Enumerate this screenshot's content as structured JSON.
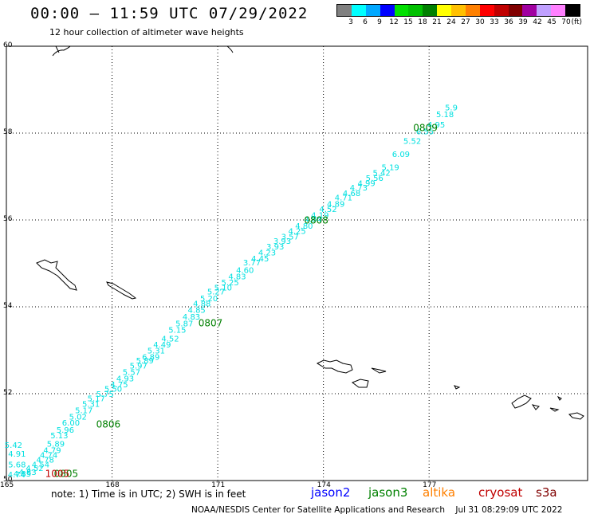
{
  "header": {
    "title": "00:00 – 11:59 UTC 07/29/2022",
    "subtitle": "12 hour collection of altimeter wave heights"
  },
  "legend": {
    "colors": [
      "#808080",
      "#00ffff",
      "#00a8ff",
      "#0000ff",
      "#00e000",
      "#00c000",
      "#008000",
      "#ffff00",
      "#ffc000",
      "#ff8000",
      "#ff0000",
      "#c00000",
      "#800000",
      "#a000a0",
      "#c0a0ff",
      "#ff80ff",
      "#000000"
    ],
    "labels": [
      "3",
      "6",
      "9",
      "12",
      "15",
      "18",
      "21",
      "24",
      "27",
      "30",
      "33",
      "36",
      "39",
      "42",
      "45",
      "70"
    ],
    "unit": "(ft)"
  },
  "axes": {
    "lat_labels": [
      "60",
      "58",
      "56",
      "54",
      "52",
      "50"
    ],
    "lon_labels": [
      "165",
      "168",
      "171",
      "174",
      "177"
    ]
  },
  "track": {
    "color": "#00e0e0",
    "time_color": "#008000",
    "points": [
      {
        "lon": 165.04,
        "lat": 50.07,
        "v": "4.74"
      },
      {
        "lon": 165.2,
        "lat": 50.09,
        "v": "4.85"
      },
      {
        "lon": 165.35,
        "lat": 50.13,
        "v": "4.83"
      },
      {
        "lon": 165.55,
        "lat": 50.22,
        "v": "4.52"
      },
      {
        "lon": 165.72,
        "lat": 50.3,
        "v": "4.54"
      },
      {
        "lon": 165.85,
        "lat": 50.41,
        "v": "4.78"
      },
      {
        "lon": 165.95,
        "lat": 50.52,
        "v": "4.74"
      },
      {
        "lon": 166.05,
        "lat": 50.63,
        "v": "4.79"
      },
      {
        "lon": 166.15,
        "lat": 50.78,
        "v": "5.89"
      },
      {
        "lon": 166.25,
        "lat": 50.97,
        "v": "5.13"
      },
      {
        "lon": 166.42,
        "lat": 51.1,
        "v": "5.96"
      },
      {
        "lon": 166.58,
        "lat": 51.27,
        "v": "6.00"
      },
      {
        "lon": 166.78,
        "lat": 51.4,
        "v": "5.02"
      },
      {
        "lon": 166.95,
        "lat": 51.55,
        "v": "5.17"
      },
      {
        "lon": 167.15,
        "lat": 51.7,
        "v": "5.31"
      },
      {
        "lon": 167.3,
        "lat": 51.83,
        "v": "5.17"
      },
      {
        "lon": 167.55,
        "lat": 51.93,
        "v": "5.75"
      },
      {
        "lon": 167.78,
        "lat": 52.05,
        "v": "5.50"
      },
      {
        "lon": 167.95,
        "lat": 52.15,
        "v": "4.75"
      },
      {
        "lon": 168.12,
        "lat": 52.28,
        "v": "4.93"
      },
      {
        "lon": 168.3,
        "lat": 52.43,
        "v": "5.57"
      },
      {
        "lon": 168.5,
        "lat": 52.58,
        "v": "5.97"
      },
      {
        "lon": 168.68,
        "lat": 52.7,
        "v": "5.89"
      },
      {
        "lon": 168.85,
        "lat": 52.78,
        "v": "6.89"
      },
      {
        "lon": 169.0,
        "lat": 52.93,
        "v": "5.31"
      },
      {
        "lon": 169.17,
        "lat": 53.06,
        "v": "4.49"
      },
      {
        "lon": 169.4,
        "lat": 53.2,
        "v": "4.52"
      },
      {
        "lon": 169.6,
        "lat": 53.4,
        "v": "5.15"
      },
      {
        "lon": 169.8,
        "lat": 53.55,
        "v": "5.87"
      },
      {
        "lon": 170.0,
        "lat": 53.71,
        "v": "4.83"
      },
      {
        "lon": 170.15,
        "lat": 53.86,
        "v": "4.85"
      },
      {
        "lon": 170.3,
        "lat": 54.01,
        "v": "4.88"
      },
      {
        "lon": 170.5,
        "lat": 54.13,
        "v": "5.20"
      },
      {
        "lon": 170.7,
        "lat": 54.28,
        "v": "5.27"
      },
      {
        "lon": 170.9,
        "lat": 54.38,
        "v": "5.10"
      },
      {
        "lon": 171.1,
        "lat": 54.5,
        "v": "5.25"
      },
      {
        "lon": 171.3,
        "lat": 54.63,
        "v": "4.83"
      },
      {
        "lon": 171.52,
        "lat": 54.78,
        "v": "4.60"
      },
      {
        "lon": 171.72,
        "lat": 54.95,
        "v": "3.77"
      },
      {
        "lon": 171.95,
        "lat": 55.05,
        "v": "4.45"
      },
      {
        "lon": 172.15,
        "lat": 55.18,
        "v": "4.23"
      },
      {
        "lon": 172.38,
        "lat": 55.32,
        "v": "3.93"
      },
      {
        "lon": 172.58,
        "lat": 55.45,
        "v": "3.93"
      },
      {
        "lon": 172.8,
        "lat": 55.55,
        "v": "3.57"
      },
      {
        "lon": 173.0,
        "lat": 55.68,
        "v": "4.25"
      },
      {
        "lon": 173.2,
        "lat": 55.8,
        "v": "4.80"
      },
      {
        "lon": 173.45,
        "lat": 55.95,
        "v": "4.84"
      },
      {
        "lon": 173.65,
        "lat": 56.05,
        "v": "4.19"
      },
      {
        "lon": 173.88,
        "lat": 56.18,
        "v": "4.52"
      },
      {
        "lon": 174.1,
        "lat": 56.3,
        "v": "4.89"
      },
      {
        "lon": 174.32,
        "lat": 56.45,
        "v": "4.71"
      },
      {
        "lon": 174.55,
        "lat": 56.55,
        "v": "4.68"
      },
      {
        "lon": 174.75,
        "lat": 56.68,
        "v": "4.73"
      },
      {
        "lon": 174.97,
        "lat": 56.78,
        "v": "4.99"
      },
      {
        "lon": 175.2,
        "lat": 56.9,
        "v": "5.56"
      },
      {
        "lon": 175.4,
        "lat": 57.02,
        "v": "5.42"
      },
      {
        "lon": 175.65,
        "lat": 57.15,
        "v": "5.19"
      },
      {
        "lon": 175.95,
        "lat": 57.45,
        "v": "6.09"
      },
      {
        "lon": 176.27,
        "lat": 57.75,
        "v": "5.52"
      },
      {
        "lon": 176.63,
        "lat": 57.97,
        "v": "6.55"
      },
      {
        "lon": 176.95,
        "lat": 58.13,
        "v": "4.95"
      },
      {
        "lon": 177.2,
        "lat": 58.37,
        "v": "5.18"
      },
      {
        "lon": 177.45,
        "lat": 58.52,
        "v": "5.9"
      },
      {
        "lon": 164.95,
        "lat": 50.75,
        "v": "5.42"
      },
      {
        "lon": 165.05,
        "lat": 50.55,
        "v": "4.91"
      },
      {
        "lon": 165.05,
        "lat": 50.3,
        "v": "5.68"
      }
    ],
    "times": [
      {
        "lon": 166.35,
        "lat": 50.08,
        "v": "0805",
        "color": "#008000"
      },
      {
        "lon": 166.1,
        "lat": 50.08,
        "v": "1005",
        "color": "#c00000"
      },
      {
        "lon": 167.55,
        "lat": 51.22,
        "v": "0806",
        "color": "#008000"
      },
      {
        "lon": 170.45,
        "lat": 53.55,
        "v": "0807",
        "color": "#008000"
      },
      {
        "lon": 173.45,
        "lat": 55.92,
        "v": "0808",
        "color": "#008000"
      },
      {
        "lon": 176.55,
        "lat": 58.05,
        "v": "0809",
        "color": "#008000"
      }
    ]
  },
  "footer": {
    "note": "note:  1) Time is in UTC;  2) SWH is in feet",
    "satellites": [
      {
        "name": "jason2",
        "color": "#0000ff"
      },
      {
        "name": "jason3",
        "color": "#008000"
      },
      {
        "name": "altika",
        "color": "#ff8000"
      },
      {
        "name": "cryosat",
        "color": "#c00000"
      },
      {
        "name": "s3a",
        "color": "#800000"
      }
    ],
    "credit": "NOAA/NESDIS Center for Satellite Applications and Research",
    "timestamp": "Jul 31 08:29:09 UTC 2022"
  }
}
